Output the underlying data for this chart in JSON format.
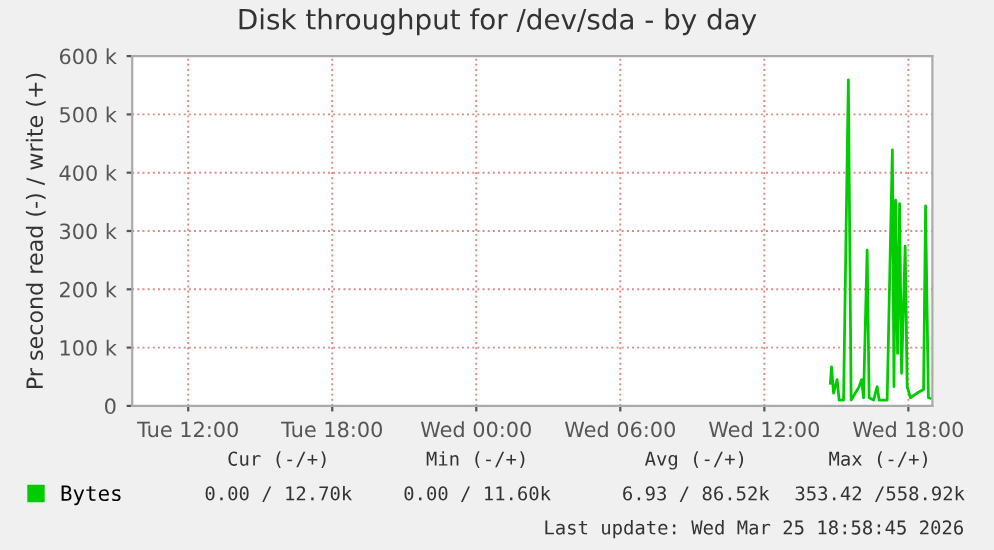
{
  "chart_data": {
    "type": "line",
    "title": "Disk throughput for /dev/sda - by day",
    "ylabel": "Pr second read (-) / write (+)",
    "x": [
      "2026-03-25T14:45",
      "2026-03-25T14:48",
      "2026-03-25T14:53",
      "2026-03-25T15:02",
      "2026-03-25T15:07",
      "2026-03-25T15:18",
      "2026-03-25T15:30",
      "2026-03-25T15:37",
      "2026-03-25T15:57",
      "2026-03-25T16:03",
      "2026-03-25T16:08",
      "2026-03-25T16:17",
      "2026-03-25T16:22",
      "2026-03-25T16:33",
      "2026-03-25T16:42",
      "2026-03-25T16:47",
      "2026-03-25T17:07",
      "2026-03-25T17:20",
      "2026-03-25T17:24",
      "2026-03-25T17:28",
      "2026-03-25T17:33",
      "2026-03-25T17:38",
      "2026-03-25T17:43",
      "2026-03-25T17:52",
      "2026-03-25T17:57",
      "2026-03-25T18:05",
      "2026-03-25T18:22",
      "2026-03-25T18:38",
      "2026-03-25T18:43",
      "2026-03-25T18:50",
      "2026-03-25T18:55"
    ],
    "series": [
      {
        "name": "Bytes",
        "color": "#00cc00",
        "values": [
          39000,
          67000,
          22000,
          45000,
          10000,
          10000,
          559000,
          10000,
          33000,
          45000,
          14000,
          267000,
          14000,
          10000,
          33000,
          10000,
          10000,
          439000,
          33000,
          353000,
          90000,
          347000,
          56000,
          274000,
          33000,
          14000,
          22000,
          28000,
          343000,
          14000,
          13000
        ]
      }
    ],
    "xlim": [
      "2026-03-24T09:40",
      "2026-03-25T19:00"
    ],
    "xticks": [
      {
        "value": "2026-03-24T12:00",
        "label": "Tue 12:00"
      },
      {
        "value": "2026-03-24T18:00",
        "label": "Tue 18:00"
      },
      {
        "value": "2026-03-25T00:00",
        "label": "Wed 00:00"
      },
      {
        "value": "2026-03-25T06:00",
        "label": "Wed 06:00"
      },
      {
        "value": "2026-03-25T12:00",
        "label": "Wed 12:00"
      },
      {
        "value": "2026-03-25T18:00",
        "label": "Wed 18:00"
      }
    ],
    "ylim": [
      0,
      600000
    ],
    "yticks": [
      {
        "value": 0,
        "label": "0"
      },
      {
        "value": 100000,
        "label": "100 k"
      },
      {
        "value": 200000,
        "label": "200 k"
      },
      {
        "value": 300000,
        "label": "300 k"
      },
      {
        "value": 400000,
        "label": "400 k"
      },
      {
        "value": 500000,
        "label": "500 k"
      },
      {
        "value": 600000,
        "label": "600 k"
      }
    ],
    "grid": true,
    "legend": "bottom left",
    "marker": "none",
    "line_style": "solid",
    "annotations": [
      "Cur (-/+)",
      "Min (-/+)",
      "Avg (-/+)",
      "Max (-/+)",
      "0.00 / 12.70k",
      "0.00 / 11.60k",
      "6.93 / 86.52k",
      "353.42 /558.92k",
      "Last update: Wed Mar 25 18:58:45 2026"
    ]
  }
}
